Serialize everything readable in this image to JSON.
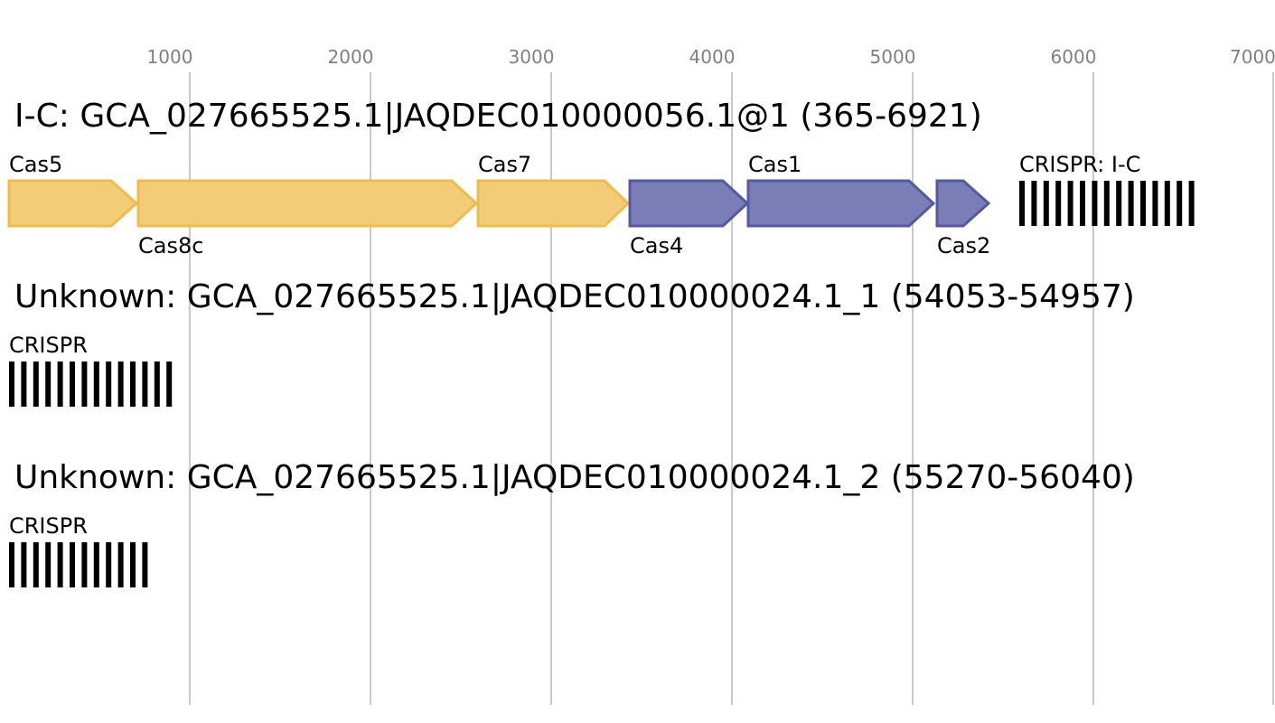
{
  "axis": {
    "ticks": [
      "1000",
      "2000",
      "3000",
      "4000",
      "5000",
      "6000",
      "7000"
    ]
  },
  "colors": {
    "yellow_fill": "#f2cc77",
    "yellow_stroke": "#efbc4b",
    "blue_fill": "#7b7db6",
    "blue_stroke": "#5558a3",
    "crispr": "#000000"
  },
  "loci": [
    {
      "title": "I-C: GCA_027665525.1|JAQDEC010000056.1@1 (365-6921)",
      "genes": [
        {
          "name": "Cas5",
          "color": "yellow"
        },
        {
          "name": "Cas8c",
          "color": "yellow"
        },
        {
          "name": "Cas7",
          "color": "yellow"
        },
        {
          "name": "Cas4",
          "color": "blue"
        },
        {
          "name": "Cas1",
          "color": "blue"
        },
        {
          "name": "Cas2",
          "color": "blue"
        }
      ],
      "crispr_label": "CRISPR: I-C"
    },
    {
      "title": "Unknown: GCA_027665525.1|JAQDEC010000024.1_1 (54053-54957)",
      "crispr_label": "CRISPR"
    },
    {
      "title": "Unknown: GCA_027665525.1|JAQDEC010000024.1_2 (55270-56040)",
      "crispr_label": "CRISPR"
    }
  ]
}
